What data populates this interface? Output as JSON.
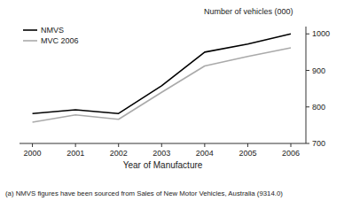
{
  "chart_data": {
    "type": "line",
    "x": [
      2000,
      2001,
      2002,
      2003,
      2004,
      2005,
      2006
    ],
    "series": [
      {
        "name": "NMVS",
        "color": "#000000",
        "values": [
          782,
          792,
          782,
          858,
          950,
          972,
          1000
        ]
      },
      {
        "name": "MVC 2006",
        "color": "#aaaaaa",
        "values": [
          758,
          778,
          766,
          840,
          912,
          938,
          962
        ]
      }
    ],
    "xlabel": "Year of Manufacture",
    "ylabel": "Number of vehicles (000)",
    "footnote": "(a) NMVS figures have been sourced from Sales of New Motor Vehicles, Australia (9314.0)",
    "xlim": [
      1999.7,
      2006.35
    ],
    "xticks": [
      2000,
      2001,
      2002,
      2003,
      2004,
      2005,
      2006
    ],
    "ylim": [
      700,
      1020
    ],
    "yticks": [
      700,
      800,
      900,
      1000
    ],
    "legend": "upper left",
    "grid": false
  }
}
